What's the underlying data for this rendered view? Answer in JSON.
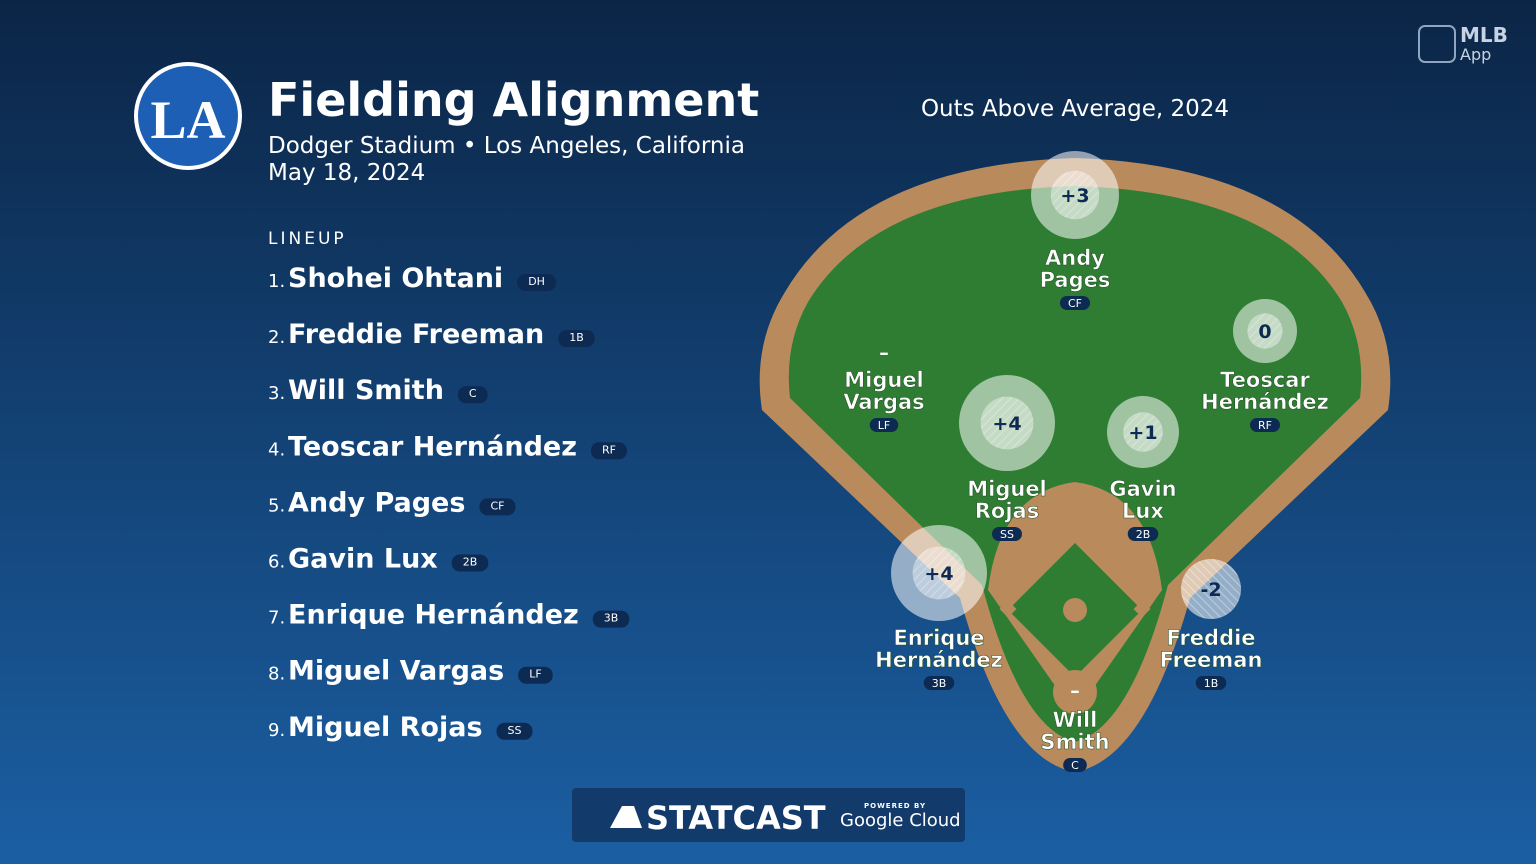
{
  "header": {
    "logo": "LA",
    "title": "Fielding Alignment",
    "venue": "Dodger Stadium • Los Angeles, California",
    "date": "May 18, 2024"
  },
  "app_badge": {
    "line1": "MLB",
    "line2": "App"
  },
  "lineup": {
    "label": "LINEUP",
    "players": [
      {
        "order": "1.",
        "name": "Shohei Ohtani",
        "position": "DH"
      },
      {
        "order": "2.",
        "name": "Freddie Freeman",
        "position": "1B"
      },
      {
        "order": "3.",
        "name": "Will Smith",
        "position": "C"
      },
      {
        "order": "4.",
        "name": "Teoscar Hernández",
        "position": "RF"
      },
      {
        "order": "5.",
        "name": "Andy Pages",
        "position": "CF"
      },
      {
        "order": "6.",
        "name": "Gavin Lux",
        "position": "2B"
      },
      {
        "order": "7.",
        "name": "Enrique Hernández",
        "position": "3B"
      },
      {
        "order": "8.",
        "name": "Miguel Vargas",
        "position": "LF"
      },
      {
        "order": "9.",
        "name": "Miguel Rojas",
        "position": "SS"
      }
    ]
  },
  "field": {
    "title": "Outs Above Average, 2024",
    "fielders": [
      {
        "name_lines": [
          "Andy",
          "Pages"
        ],
        "position": "CF",
        "oaa": {
          "value": 3,
          "label": "+3"
        }
      },
      {
        "name_lines": [
          "Teoscar",
          "Hernández"
        ],
        "position": "RF",
        "oaa": {
          "value": 0,
          "label": "0"
        }
      },
      {
        "name_lines": [
          "Miguel",
          "Vargas"
        ],
        "position": "LF",
        "oaa": {
          "value": null,
          "label": "–"
        }
      },
      {
        "name_lines": [
          "Miguel",
          "Rojas"
        ],
        "position": "SS",
        "oaa": {
          "value": 4,
          "label": "+4"
        }
      },
      {
        "name_lines": [
          "Gavin",
          "Lux"
        ],
        "position": "2B",
        "oaa": {
          "value": 1,
          "label": "+1"
        }
      },
      {
        "name_lines": [
          "Enrique",
          "Hernández"
        ],
        "position": "3B",
        "oaa": {
          "value": 4,
          "label": "+4"
        }
      },
      {
        "name_lines": [
          "Freddie",
          "Freeman"
        ],
        "position": "1B",
        "oaa": {
          "value": -2,
          "label": "-2"
        }
      },
      {
        "name_lines": [
          "Will",
          "Smith"
        ],
        "position": "C",
        "oaa": {
          "value": null,
          "label": "–"
        }
      }
    ]
  },
  "footer": {
    "brand": "STATCAST",
    "powered": "POWERED BY",
    "partner": "Google Cloud"
  }
}
